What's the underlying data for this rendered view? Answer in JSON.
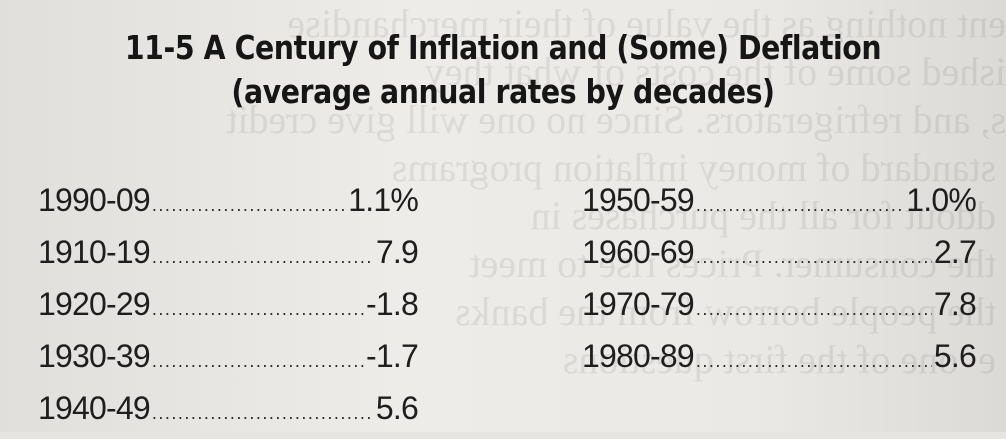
{
  "title": {
    "line1": "11-5  A Century of Inflation and (Some) Deflation",
    "line2": "(average annual rates by decades)"
  },
  "left_column": [
    {
      "period": "1990-09",
      "value": "1.1%"
    },
    {
      "period": "1910-19",
      "value": "7.9"
    },
    {
      "period": "1920-29",
      "value": "-1.8"
    },
    {
      "period": "1930-39",
      "value": "-1.7"
    },
    {
      "period": "1940-49",
      "value": "5.6"
    }
  ],
  "right_column": [
    {
      "period": "1950-59",
      "value": "1.0%"
    },
    {
      "period": "1960-69",
      "value": "2.7"
    },
    {
      "period": "1970-79",
      "value": "7.8"
    },
    {
      "period": "1980-89",
      "value": "5.6"
    }
  ]
}
